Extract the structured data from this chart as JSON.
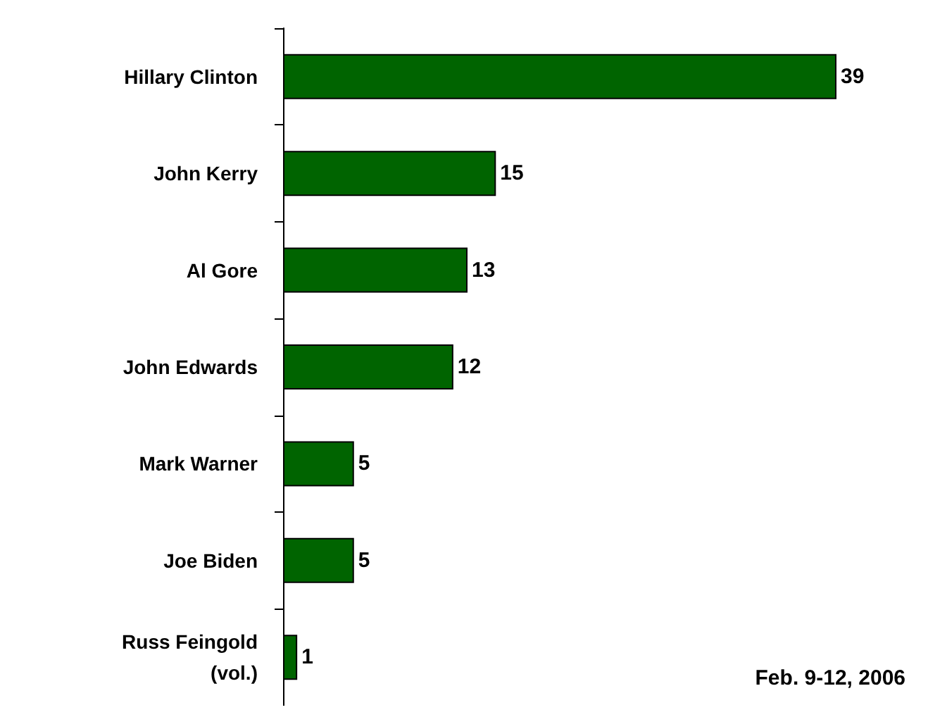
{
  "chart_data": {
    "type": "bar",
    "orientation": "horizontal",
    "categories": [
      "Hillary Clinton",
      "John Kerry",
      "Al Gore",
      "John Edwards",
      "Mark Warner",
      "Joe Biden",
      "Russ Feingold\n(vol.)"
    ],
    "values": [
      39,
      15,
      13,
      12,
      5,
      5,
      1
    ],
    "color": "#006400",
    "data_labels": true,
    "annotations": [
      "Feb. 9-12, 2006"
    ]
  }
}
